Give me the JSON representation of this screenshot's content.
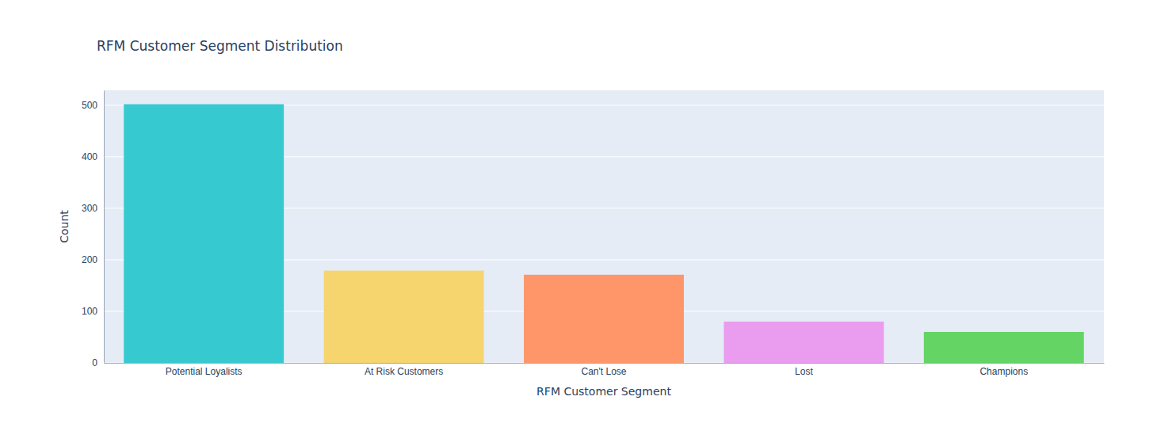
{
  "chart_data": {
    "type": "bar",
    "title": "RFM Customer Segment Distribution",
    "x_label": "RFM Customer Segment",
    "y_label": "Count",
    "categories": [
      "Potential Loyalists",
      "At Risk Customers",
      "Can't Lose",
      "Lost",
      "Champions"
    ],
    "values": [
      502,
      179,
      171,
      80,
      60
    ],
    "colors": [
      "#36cad0",
      "#f6d56f",
      "#fe9669",
      "#ea9cef",
      "#64d464"
    ],
    "ylim": [
      0,
      529
    ],
    "yticks": [
      0,
      100,
      200,
      300,
      400,
      500
    ],
    "grid": true
  }
}
